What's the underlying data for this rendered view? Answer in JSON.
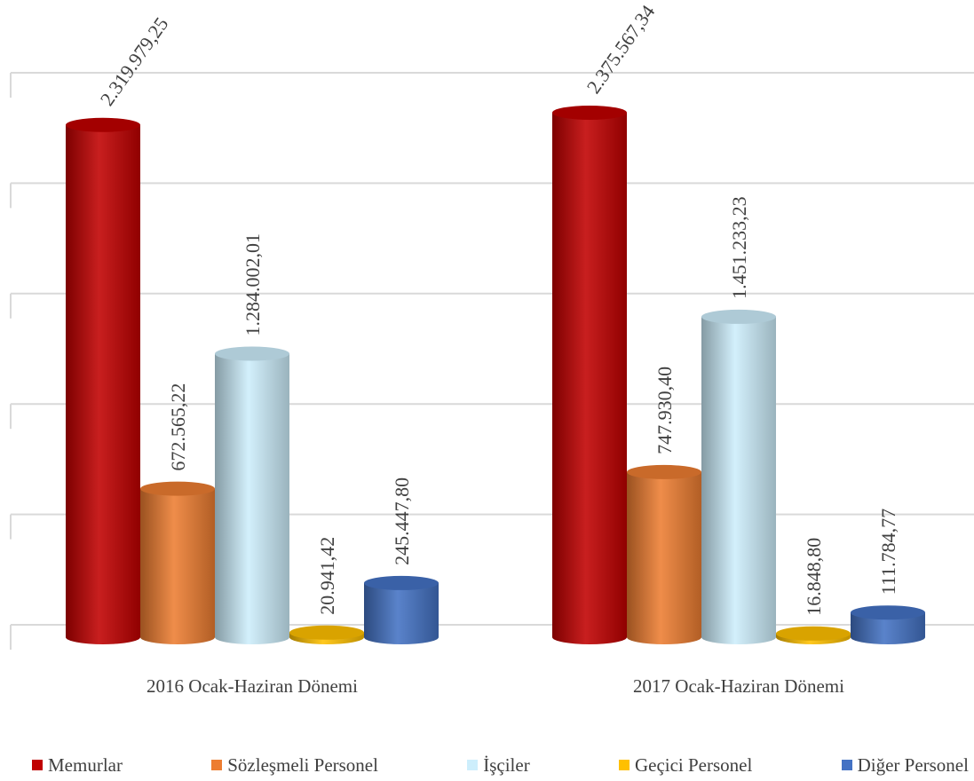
{
  "chart_data": {
    "type": "bar",
    "style": "3d-cylinder",
    "categories": [
      "2016 Ocak-Haziran Dönemi",
      "2017 Ocak-Haziran Dönemi"
    ],
    "series": [
      {
        "name": "Memurlar",
        "values": [
          2319979.25,
          2375567.34
        ],
        "labels": [
          "2.319.979,25",
          "2.375.567,34"
        ],
        "color": "#c00000"
      },
      {
        "name": "Sözleşmeli Personel",
        "values": [
          672565.22,
          747930.4
        ],
        "labels": [
          "672.565,22",
          "747.930,40"
        ],
        "color": "#ed7d31"
      },
      {
        "name": "İşçiler",
        "values": [
          1284002.01,
          1451233.23
        ],
        "labels": [
          "1.284.002,01",
          "1.451.233,23"
        ],
        "color": "#cdeefc"
      },
      {
        "name": "Geçici Personel",
        "values": [
          20941.42,
          16848.8
        ],
        "labels": [
          "20.941,42",
          "16.848,80"
        ],
        "color": "#ffc000"
      },
      {
        "name": "Diğer Personel",
        "values": [
          245447.8,
          111784.77
        ],
        "labels": [
          "245.447,80",
          "111.784,77"
        ],
        "color": "#4472c4"
      }
    ],
    "ylim": [
      0,
      2500000
    ],
    "gridlines": true,
    "legend": "bottom"
  }
}
